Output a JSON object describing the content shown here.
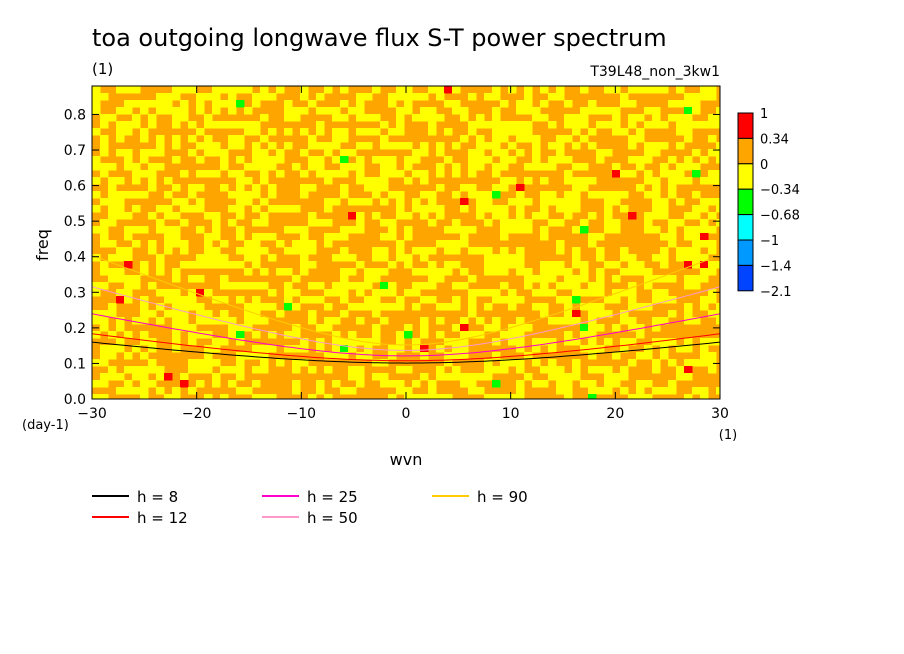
{
  "chart_data": {
    "type": "heatmap",
    "title": "toa outgoing longwave flux S-T power spectrum",
    "subtitle_left": "(1)",
    "subtitle_right": "T39L48_non_3kw1",
    "xlabel": "wvn",
    "ylabel": "freq",
    "x_unit": "(1)",
    "y_unit": "(day-1)",
    "xlim": [
      -30,
      30
    ],
    "ylim": [
      0,
      0.88
    ],
    "x_ticks": [
      "−30",
      "−20",
      "−10",
      "0",
      "10",
      "20",
      "30"
    ],
    "x_tick_values": [
      -30,
      -20,
      -10,
      0,
      10,
      20,
      30
    ],
    "y_ticks": [
      "0.0",
      "0.1",
      "0.2",
      "0.3",
      "0.4",
      "0.5",
      "0.6",
      "0.7",
      "0.8"
    ],
    "y_tick_values": [
      0,
      0.1,
      0.2,
      0.3,
      0.4,
      0.5,
      0.6,
      0.7,
      0.8
    ],
    "colorbar": {
      "labels": [
        "1",
        "0.34",
        "0",
        "−0.34",
        "−0.68",
        "−1",
        "−1.4",
        "−2.1"
      ],
      "colors": [
        "#ff0000",
        "#ffa500",
        "#ffff00",
        "#00ff00",
        "#00ffff",
        "#0099ff",
        "#0044ff"
      ]
    },
    "field_note": "noisy field mostly between -0.34 and 0.34 (orange/yellow), with scattered small red and green spots",
    "dispersion_curves": [
      {
        "name": "h =  8",
        "color": "#000000"
      },
      {
        "name": "h = 12",
        "color": "#ff0000"
      },
      {
        "name": "h = 25",
        "color": "#ff00cc"
      },
      {
        "name": "h = 50",
        "color": "#ff99cc"
      },
      {
        "name": "h = 90",
        "color": "#ffcc00"
      }
    ],
    "legend_position": "bottom",
    "grid": false
  }
}
